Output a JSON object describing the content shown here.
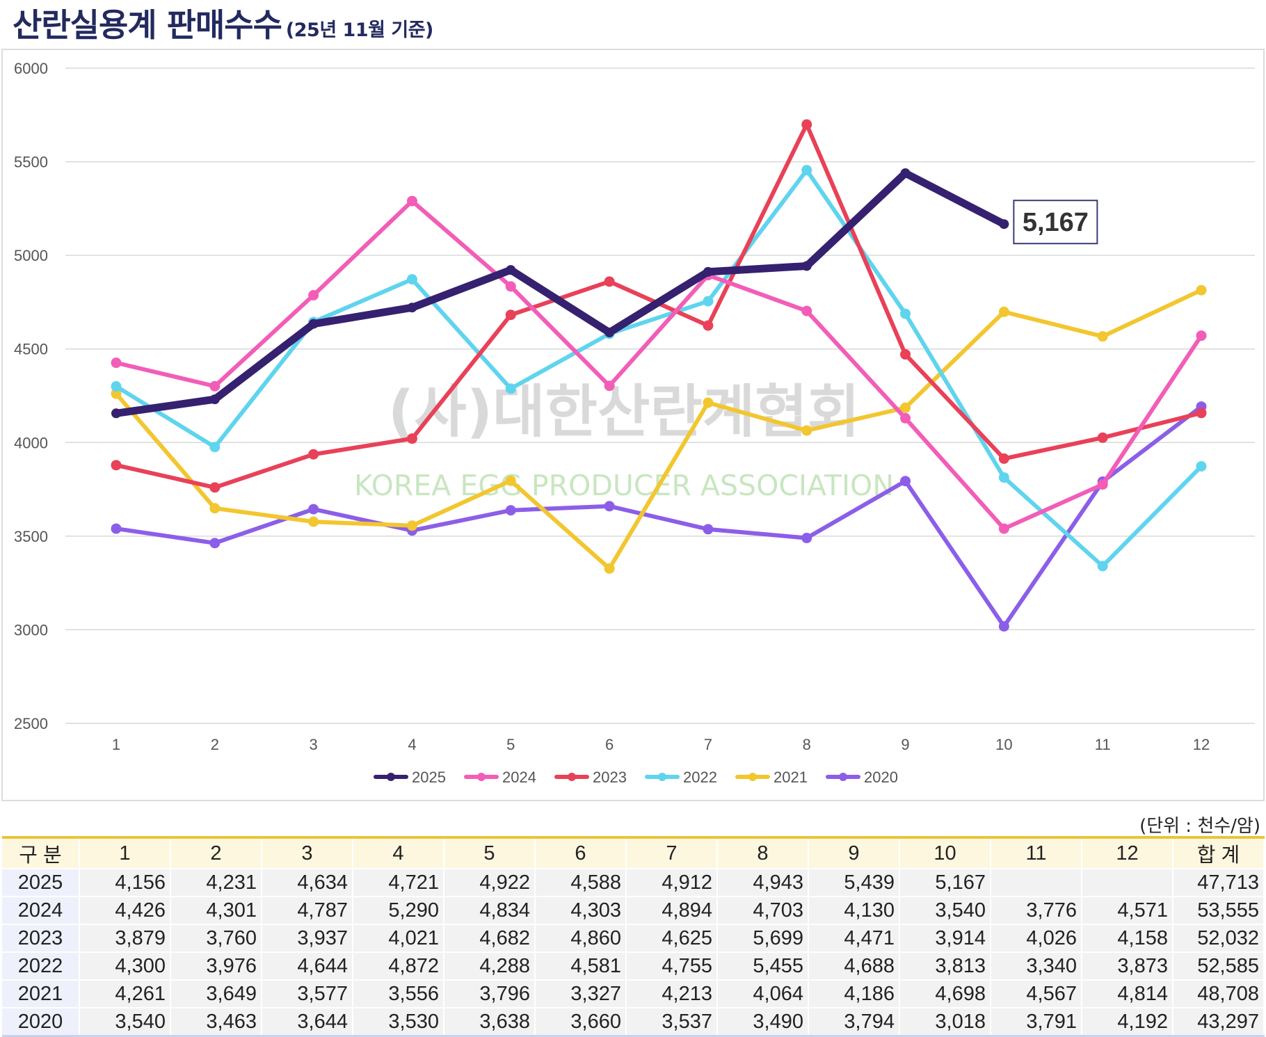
{
  "header": {
    "title": "산란실용계 판매수수",
    "subtitle": "(25년 11월 기준)"
  },
  "watermark": {
    "kr": "(사)대한산란계협회",
    "en": "KOREA EGG PRODUCER ASSOCIATION"
  },
  "chart_data": {
    "type": "line",
    "title": "",
    "xlabel": "",
    "ylabel": "",
    "categories": [
      "1",
      "2",
      "3",
      "4",
      "5",
      "6",
      "7",
      "8",
      "9",
      "10",
      "11",
      "12"
    ],
    "y_ticks": [
      "2500",
      "3000",
      "3500",
      "4000",
      "4500",
      "5000",
      "5500",
      "6000"
    ],
    "ylim": [
      2500,
      6000
    ],
    "grid": "horizontal",
    "legend_position": "bottom",
    "series": [
      {
        "name": "2025",
        "color": "#35216f",
        "values": [
          4156,
          4231,
          4634,
          4721,
          4922,
          4588,
          4912,
          4943,
          5439,
          5167,
          null,
          null
        ]
      },
      {
        "name": "2024",
        "color": "#f25db8",
        "values": [
          4426,
          4301,
          4787,
          5290,
          4834,
          4303,
          4894,
          4703,
          4130,
          3540,
          3776,
          4571
        ]
      },
      {
        "name": "2023",
        "color": "#e84158",
        "values": [
          3879,
          3760,
          3937,
          4021,
          4682,
          4860,
          4625,
          5699,
          4471,
          3914,
          4026,
          4158
        ]
      },
      {
        "name": "2022",
        "color": "#5fd4ee",
        "values": [
          4300,
          3976,
          4644,
          4872,
          4288,
          4581,
          4755,
          5455,
          4688,
          3813,
          3340,
          3873
        ]
      },
      {
        "name": "2021",
        "color": "#f2c62f",
        "values": [
          4261,
          3649,
          3577,
          3556,
          3796,
          3327,
          4213,
          4064,
          4186,
          4698,
          4567,
          4814
        ]
      },
      {
        "name": "2020",
        "color": "#8c5ee8",
        "values": [
          3540,
          3463,
          3644,
          3530,
          3638,
          3660,
          3537,
          3490,
          3794,
          3018,
          3791,
          4192
        ]
      }
    ],
    "annotation": {
      "text": "5,167",
      "series": "2025",
      "category": "10"
    }
  },
  "table": {
    "unit": "(단위 : 천수/암)",
    "headers": [
      "구 분",
      "1",
      "2",
      "3",
      "4",
      "5",
      "6",
      "7",
      "8",
      "9",
      "10",
      "11",
      "12",
      "합 계"
    ],
    "rows": [
      {
        "year": "2025",
        "cells": [
          "4,156",
          "4,231",
          "4,634",
          "4,721",
          "4,922",
          "4,588",
          "4,912",
          "4,943",
          "5,439",
          "5,167",
          "",
          ""
        ],
        "total": "47,713"
      },
      {
        "year": "2024",
        "cells": [
          "4,426",
          "4,301",
          "4,787",
          "5,290",
          "4,834",
          "4,303",
          "4,894",
          "4,703",
          "4,130",
          "3,540",
          "3,776",
          "4,571"
        ],
        "total": "53,555"
      },
      {
        "year": "2023",
        "cells": [
          "3,879",
          "3,760",
          "3,937",
          "4,021",
          "4,682",
          "4,860",
          "4,625",
          "5,699",
          "4,471",
          "3,914",
          "4,026",
          "4,158"
        ],
        "total": "52,032"
      },
      {
        "year": "2022",
        "cells": [
          "4,300",
          "3,976",
          "4,644",
          "4,872",
          "4,288",
          "4,581",
          "4,755",
          "5,455",
          "4,688",
          "3,813",
          "3,340",
          "3,873"
        ],
        "total": "52,585"
      },
      {
        "year": "2021",
        "cells": [
          "4,261",
          "3,649",
          "3,577",
          "3,556",
          "3,796",
          "3,327",
          "4,213",
          "4,064",
          "4,186",
          "4,698",
          "4,567",
          "4,814"
        ],
        "total": "48,708"
      },
      {
        "year": "2020",
        "cells": [
          "3,540",
          "3,463",
          "3,644",
          "3,530",
          "3,638",
          "3,660",
          "3,537",
          "3,490",
          "3,794",
          "3,018",
          "3,791",
          "4,192"
        ],
        "total": "43,297"
      }
    ]
  }
}
